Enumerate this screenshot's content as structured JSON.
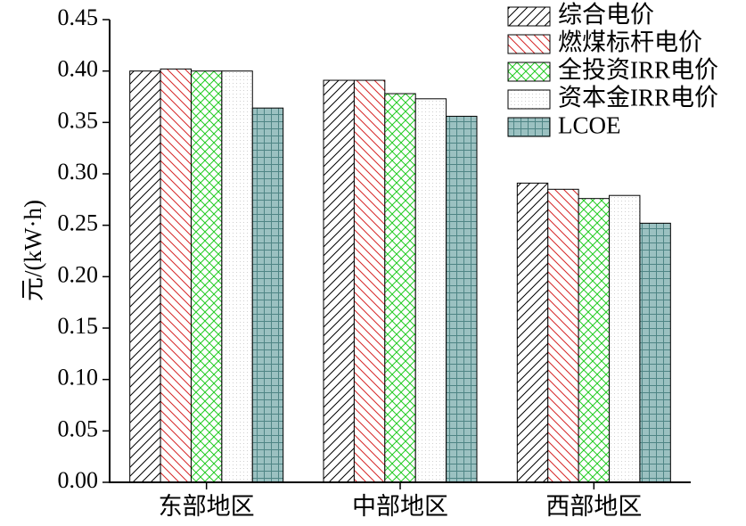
{
  "chart_data": {
    "type": "bar",
    "categories": [
      "东部地区",
      "中部地区",
      "西部地区"
    ],
    "series": [
      {
        "name": "综合电价",
        "values": [
          0.4,
          0.391,
          0.291
        ],
        "pattern": "hatch-right",
        "color": "#000000",
        "fill": "#ffffff"
      },
      {
        "name": "燃煤标杆电价",
        "values": [
          0.402,
          0.391,
          0.285
        ],
        "pattern": "hatch-left",
        "color": "#d62728",
        "fill": "#ffffff"
      },
      {
        "name": "全投资IRR电价",
        "values": [
          0.4,
          0.378,
          0.276
        ],
        "pattern": "crosshatch",
        "color": "#22cc22",
        "fill": "#ffffff"
      },
      {
        "name": "资本金IRR电价",
        "values": [
          0.4,
          0.373,
          0.279
        ],
        "pattern": "dots",
        "color": "#c8c8c8",
        "fill": "#ffffff"
      },
      {
        "name": "LCOE",
        "values": [
          0.364,
          0.356,
          0.252
        ],
        "pattern": "grid",
        "color": "#5e9191",
        "fill": "#9bc1c1"
      }
    ],
    "ylabel": "元/(kW·h)",
    "xlabel": "",
    "ylim": [
      0,
      0.45
    ],
    "yticks": [
      "0.00",
      "0.05",
      "0.10",
      "0.15",
      "0.20",
      "0.25",
      "0.30",
      "0.35",
      "0.40",
      "0.45"
    ],
    "legend_position": "top-right",
    "grid": false
  }
}
